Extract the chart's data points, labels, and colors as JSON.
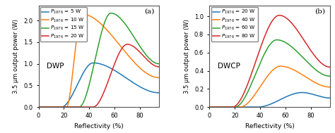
{
  "panel_a": {
    "label": "(a)",
    "annotation": "DWP",
    "legend_labels": [
      "$P_{1976}$ = 5 W",
      "$P_{1976}$ = 10 W",
      "$P_{1976}$ = 15 W",
      "$P_{1976}$ = 20 W"
    ],
    "colors": [
      "#1f77b4",
      "#ff7f0e",
      "#2ca02c",
      "#d62728"
    ],
    "ylim": [
      0,
      2.35
    ],
    "yticks": [
      0.0,
      0.5,
      1.0,
      1.5,
      2.0
    ],
    "curves": [
      {
        "start": 18,
        "peak_x": 43,
        "peak_y": 1.02,
        "end": 95,
        "tail_y": 0.33
      },
      {
        "start": 22,
        "peak_x": 34,
        "peak_y": 2.15,
        "end": 95,
        "tail_y": 0.68
      },
      {
        "start": 32,
        "peak_x": 57,
        "peak_y": 2.17,
        "end": 95,
        "tail_y": 1.0
      },
      {
        "start": 43,
        "peak_x": 70,
        "peak_y": 1.45,
        "end": 95,
        "tail_y": 0.93
      }
    ]
  },
  "panel_b": {
    "label": "(b)",
    "annotation": "DWCP",
    "legend_labels": [
      "$P_{1976}$ = 20 W",
      "$P_{1976}$ = 40 W",
      "$P_{1976}$ = 60 W",
      "$P_{1976}$ = 80 W"
    ],
    "colors": [
      "#1f77b4",
      "#ff7f0e",
      "#2ca02c",
      "#d62728"
    ],
    "ylim": [
      0,
      1.12
    ],
    "yticks": [
      0.0,
      0.2,
      0.4,
      0.6,
      0.8,
      1.0
    ],
    "curves": [
      {
        "start": 38,
        "peak_x": 73,
        "peak_y": 0.16,
        "end": 95,
        "tail_y": 0.1
      },
      {
        "start": 24,
        "peak_x": 56,
        "peak_y": 0.45,
        "end": 95,
        "tail_y": 0.22
      },
      {
        "start": 20,
        "peak_x": 53,
        "peak_y": 0.74,
        "end": 95,
        "tail_y": 0.34
      },
      {
        "start": 18,
        "peak_x": 55,
        "peak_y": 1.01,
        "end": 95,
        "tail_y": 0.44
      }
    ]
  },
  "xlabel": "Reflectivity (%)",
  "ylabel": "3.5 μm output power (W)",
  "xlim": [
    0,
    95
  ],
  "xticks": [
    0,
    20,
    40,
    60,
    80
  ]
}
